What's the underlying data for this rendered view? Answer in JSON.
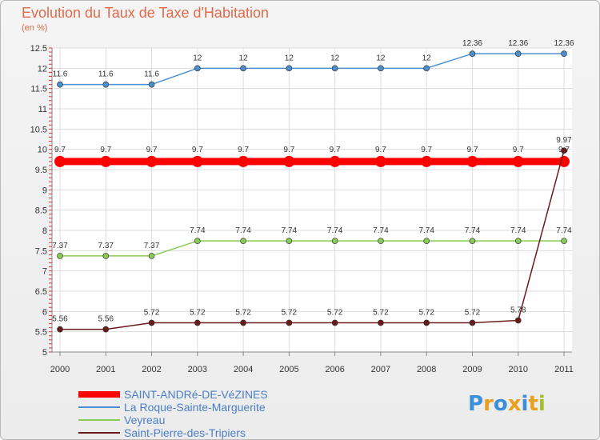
{
  "chart_data": {
    "type": "line",
    "title": "Evolution du Taux de Taxe d'Habitation",
    "ylabel": "(en %)",
    "xlabel": "",
    "categories": [
      "2000",
      "2001",
      "2002",
      "2003",
      "2004",
      "2005",
      "2006",
      "2007",
      "2008",
      "2009",
      "2010",
      "2011"
    ],
    "ylim": [
      5,
      12.5
    ],
    "yticks": [
      "5",
      "5.5",
      "6",
      "6.5",
      "7",
      "7.5",
      "8",
      "8.5",
      "9",
      "9.5",
      "10",
      "10.5",
      "11",
      "11.5",
      "12",
      "12.5"
    ],
    "legend_position": "bottom-left",
    "series": [
      {
        "name": "SAINT-ANDRé-DE-VéZINES",
        "color": "#ff0000",
        "values": [
          9.7,
          9.7,
          9.7,
          9.7,
          9.7,
          9.7,
          9.7,
          9.7,
          9.7,
          9.7,
          9.7,
          9.7
        ],
        "labels": [
          "9.7",
          "9.7",
          "9.7",
          "9.7",
          "9.7",
          "9.7",
          "9.7",
          "9.7",
          "9.7",
          "9.7",
          "9.7",
          "9.7"
        ]
      },
      {
        "name": "La Roque-Sainte-Marguerite",
        "color": "#4a90d0",
        "values": [
          11.6,
          11.6,
          11.6,
          12,
          12,
          12,
          12,
          12,
          12,
          12.36,
          12.36,
          12.36
        ],
        "labels": [
          "11.6",
          "11.6",
          "11.6",
          "12",
          "12",
          "12",
          "12",
          "12",
          "12",
          "12.36",
          "12.36",
          "12.36"
        ]
      },
      {
        "name": "Veyreau",
        "color": "#88cc55",
        "values": [
          7.37,
          7.37,
          7.37,
          7.74,
          7.74,
          7.74,
          7.74,
          7.74,
          7.74,
          7.74,
          7.74,
          7.74
        ],
        "labels": [
          "7.37",
          "7.37",
          "7.37",
          "7.74",
          "7.74",
          "7.74",
          "7.74",
          "7.74",
          "7.74",
          "7.74",
          "7.74",
          "7.74"
        ]
      },
      {
        "name": "Saint-Pierre-des-Tripiers",
        "color": "#6b1a1a",
        "values": [
          5.56,
          5.56,
          5.72,
          5.72,
          5.72,
          5.72,
          5.72,
          5.72,
          5.72,
          5.72,
          5.78,
          9.97
        ],
        "labels": [
          "5.56",
          "5.56",
          "5.72",
          "5.72",
          "5.72",
          "5.72",
          "5.72",
          "5.72",
          "5.72",
          "5.72",
          "5.78",
          "9.97"
        ]
      }
    ]
  },
  "logo": {
    "letters": [
      "P",
      "r",
      "o",
      "x",
      "i",
      "t",
      "i"
    ],
    "colors": [
      "#3a8fd8",
      "#e8a020",
      "#3a8fd8",
      "#e8a020",
      "#3a8fd8",
      "#e8a020",
      "#a0c030"
    ]
  }
}
